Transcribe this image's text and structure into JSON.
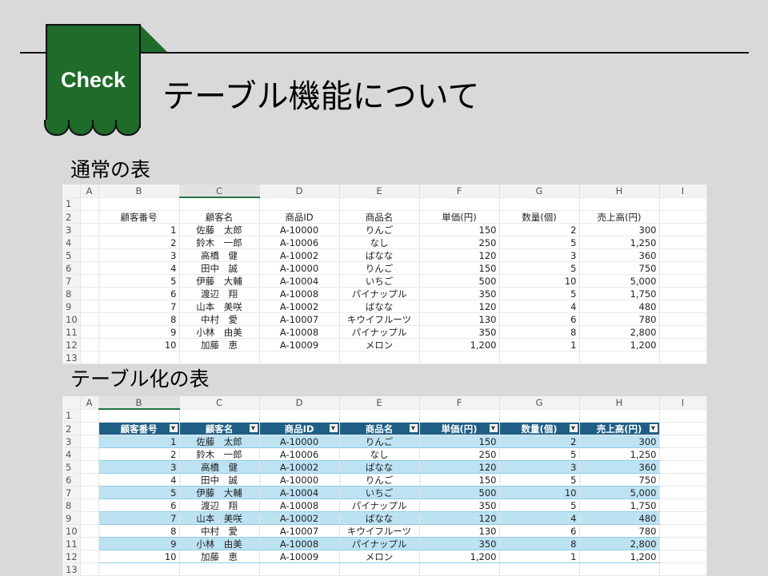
{
  "badge": "Check",
  "title": "テーブル機能について",
  "section1": "通常の表",
  "section2": "テーブル化の表",
  "columns": [
    "",
    "A",
    "B",
    "C",
    "D",
    "E",
    "F",
    "G",
    "H",
    "I"
  ],
  "headers": [
    "顧客番号",
    "顧客名",
    "商品ID",
    "商品名",
    "単価(円)",
    "数量(個)",
    "売上高(円)"
  ],
  "rows": [
    [
      "1",
      "佐藤　太郎",
      "A-10000",
      "りんご",
      "150",
      "2",
      "300"
    ],
    [
      "2",
      "鈴木　一郎",
      "A-10006",
      "なし",
      "250",
      "5",
      "1,250"
    ],
    [
      "3",
      "高橋　健",
      "A-10002",
      "ばなな",
      "120",
      "3",
      "360"
    ],
    [
      "4",
      "田中　誠",
      "A-10000",
      "りんご",
      "150",
      "5",
      "750"
    ],
    [
      "5",
      "伊藤　大輔",
      "A-10004",
      "いちご",
      "500",
      "10",
      "5,000"
    ],
    [
      "6",
      "渡辺　翔",
      "A-10008",
      "パイナップル",
      "350",
      "5",
      "1,750"
    ],
    [
      "7",
      "山本　美咲",
      "A-10002",
      "ばなな",
      "120",
      "4",
      "480"
    ],
    [
      "8",
      "中村　愛",
      "A-10007",
      "キウイフルーツ",
      "130",
      "6",
      "780"
    ],
    [
      "9",
      "小林　由美",
      "A-10008",
      "パイナップル",
      "350",
      "8",
      "2,800"
    ],
    [
      "10",
      "加藤　恵",
      "A-10009",
      "メロン",
      "1,200",
      "1",
      "1,200"
    ]
  ],
  "colors": {
    "accent": "#1e6b2a",
    "table_header": "#1f5f85",
    "band": "#bde3f3"
  }
}
